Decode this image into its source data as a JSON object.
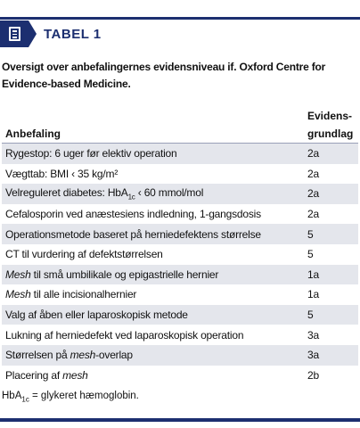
{
  "header": {
    "icon": "document-list-icon",
    "label": "TABEL 1"
  },
  "caption": "Oversigt over anbefalingernes evidensniveau if. Oxford Centre for Evidence-based Medicine.",
  "columns": {
    "left": "Anbefaling",
    "right_line1": "Evidens-",
    "right_line2": "grundlag"
  },
  "rows": [
    {
      "pre": "Rygestop: 6 uger før elektiv operation",
      "grade": "2a"
    },
    {
      "pre": "Vægttab: BMI ‹ 35 kg/m²",
      "grade": "2a"
    },
    {
      "pre": "Velreguleret diabetes: HbA",
      "sub": "1c",
      "post": " ‹ 60 mmol/mol",
      "grade": "2a"
    },
    {
      "pre": "Cefalosporin ved anæstesiens indledning, 1-gangsdosis",
      "grade": "2a"
    },
    {
      "pre": "Operationsmetode baseret på herniedefektens størrelse",
      "grade": "5"
    },
    {
      "pre": "CT til vurdering af defektstørrelsen",
      "grade": "5"
    },
    {
      "em": "Mesh",
      "post": " til små umbilikale og epigastrielle hernier",
      "grade": "1a"
    },
    {
      "em": "Mesh",
      "post": " til alle incisionalhernier",
      "grade": "1a"
    },
    {
      "pre": "Valg af åben eller laparoskopisk metode",
      "grade": "5"
    },
    {
      "pre": "Lukning af herniedefekt ved laparoskopisk operation",
      "grade": "3a"
    },
    {
      "pre": "Størrelsen på ",
      "em": "mesh",
      "post": "-overlap",
      "grade": "3a"
    },
    {
      "pre": "Placering af ",
      "em": "mesh",
      "grade": "2b"
    }
  ],
  "footnote": {
    "pre": "HbA",
    "sub": "1c",
    "post": " = glykeret hæmoglobin."
  },
  "colors": {
    "accent": "#1c2f70",
    "row_shade": "#e4e6ec"
  }
}
